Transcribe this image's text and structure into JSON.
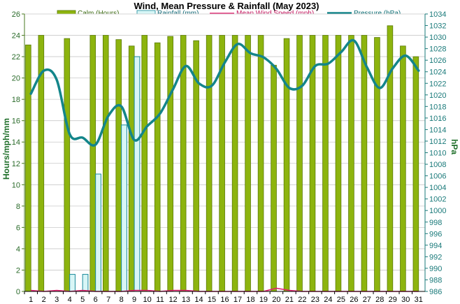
{
  "chart_data": {
    "type": "bar",
    "title": "Wind, Mean Pressure & Rainfall (May 2023)",
    "ylabel": "Hours/mph/mm",
    "y2label": "hPa",
    "ylim": [
      0,
      26
    ],
    "y2lim": [
      986,
      1034
    ],
    "grid": true,
    "legend_position": "top",
    "x": [
      1,
      2,
      3,
      4,
      5,
      6,
      7,
      8,
      9,
      10,
      11,
      12,
      13,
      14,
      15,
      16,
      17,
      18,
      19,
      20,
      21,
      22,
      23,
      24,
      25,
      26,
      27,
      28,
      29,
      30,
      31
    ],
    "y_ticks": [
      0,
      2,
      4,
      6,
      8,
      10,
      12,
      14,
      16,
      18,
      20,
      22,
      24,
      26
    ],
    "y2_ticks": [
      986,
      988,
      990,
      992,
      994,
      996,
      998,
      1000,
      1002,
      1004,
      1006,
      1008,
      1010,
      1012,
      1014,
      1016,
      1018,
      1020,
      1022,
      1024,
      1026,
      1028,
      1030,
      1032,
      1034
    ],
    "series": [
      {
        "name": "Calm (Hours)",
        "type": "bar",
        "axis": "left",
        "color": "#8db40e",
        "stroke": "#5a7a06",
        "values": [
          23.1,
          24.0,
          null,
          23.7,
          null,
          24.0,
          24.0,
          23.6,
          23.0,
          24.0,
          23.3,
          23.9,
          24.0,
          23.5,
          24.0,
          24.0,
          24.0,
          24.0,
          24.0,
          21.2,
          23.7,
          24.0,
          24.0,
          24.0,
          24.0,
          24.0,
          24.0,
          23.8,
          24.9,
          23.0,
          22.0
        ]
      },
      {
        "name": "Rainfall (mm)",
        "type": "bar",
        "axis": "left",
        "color": "#d8f6f6",
        "stroke": "#1a8a9a",
        "values": [
          0,
          0,
          0,
          1.6,
          1.6,
          11.0,
          0,
          15.6,
          22.0,
          0,
          0,
          0,
          0,
          0,
          0,
          0,
          0,
          0,
          0,
          0,
          0,
          0,
          0,
          0,
          0,
          0,
          0,
          0,
          0,
          0,
          0
        ]
      },
      {
        "name": "Mean Wind Speed (mph)",
        "type": "line",
        "axis": "left",
        "color": "#e0206e",
        "values": [
          0.1,
          0,
          0.1,
          0,
          0.1,
          0,
          0,
          0,
          0.1,
          0.1,
          0,
          0.1,
          0.1,
          0,
          0,
          0,
          0,
          0,
          0,
          0.3,
          0.1,
          0,
          0,
          0,
          0,
          0,
          0,
          0,
          0,
          0,
          0
        ]
      },
      {
        "name": "Pressure (hPa)",
        "type": "line",
        "axis": "right",
        "color": "#13858a",
        "values": [
          1020.2,
          1024.2,
          1022.6,
          1013.2,
          1012.6,
          1011.4,
          1016.4,
          1018.0,
          1012.2,
          1014.6,
          1016.8,
          1021.0,
          1025.0,
          1022.0,
          1021.6,
          1025.6,
          1028.8,
          1027.2,
          1026.5,
          1024.5,
          1021.2,
          1021.6,
          1025.0,
          1025.4,
          1027.4,
          1029.4,
          1024.8,
          1021.2,
          1024.6,
          1026.8,
          1024.2
        ]
      }
    ]
  }
}
